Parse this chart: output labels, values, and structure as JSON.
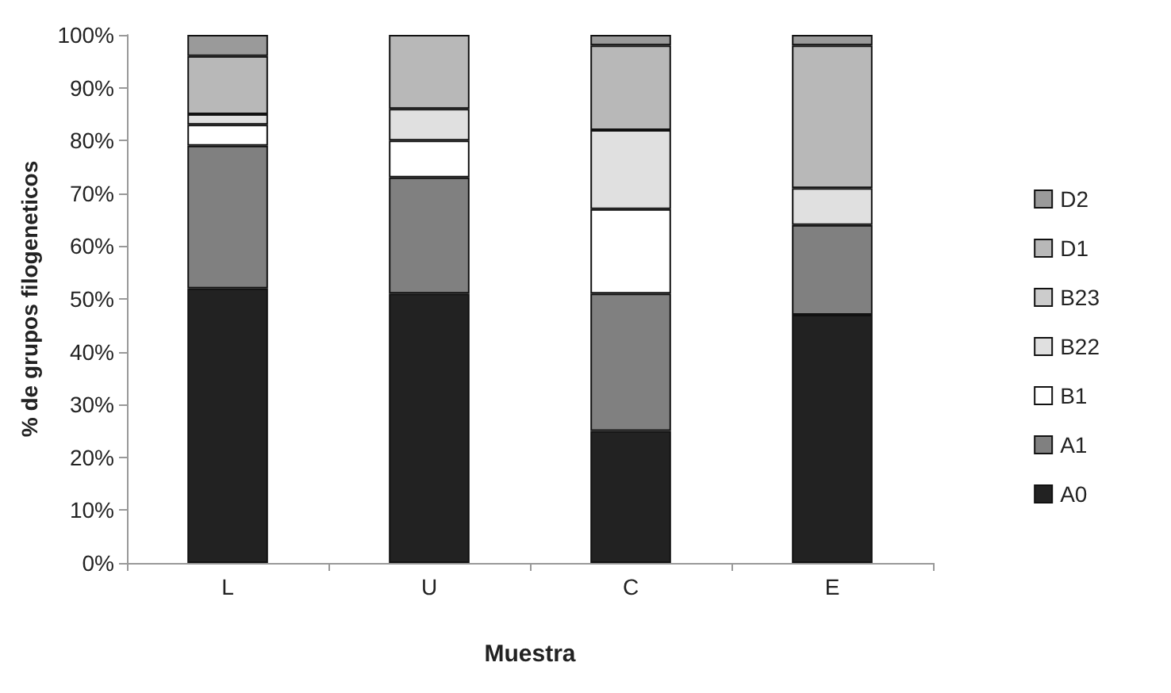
{
  "chart_data": {
    "type": "bar",
    "stacked": true,
    "xlabel": "Muestra",
    "ylabel": "% de grupos filogeneticos",
    "categories": [
      "L",
      "U",
      "C",
      "E"
    ],
    "series": [
      {
        "name": "A0",
        "color": "#222222",
        "values": [
          52,
          51,
          25,
          47
        ]
      },
      {
        "name": "A1",
        "color": "#808080",
        "values": [
          27,
          22,
          26,
          17
        ]
      },
      {
        "name": "B1",
        "color": "#ffffff",
        "values": [
          4,
          7,
          16,
          0
        ]
      },
      {
        "name": "B22",
        "color": "#e0e0e0",
        "values": [
          2,
          6,
          15,
          7
        ]
      },
      {
        "name": "B23",
        "color": "#cccccc",
        "values": [
          0,
          0,
          0,
          0
        ]
      },
      {
        "name": "D1",
        "color": "#b8b8b8",
        "values": [
          11,
          14,
          16,
          27
        ]
      },
      {
        "name": "D2",
        "color": "#9a9a9a",
        "values": [
          4,
          0,
          2,
          2
        ]
      }
    ],
    "ylim": [
      0,
      100
    ],
    "yticks": [
      {
        "value": 0,
        "label": "0%"
      },
      {
        "value": 10,
        "label": "10%"
      },
      {
        "value": 20,
        "label": "20%"
      },
      {
        "value": 30,
        "label": "30%"
      },
      {
        "value": 40,
        "label": "40%"
      },
      {
        "value": 50,
        "label": "50%"
      },
      {
        "value": 60,
        "label": "60%"
      },
      {
        "value": 70,
        "label": "70%"
      },
      {
        "value": 80,
        "label": "80%"
      },
      {
        "value": 90,
        "label": "90%"
      },
      {
        "value": 100,
        "label": "100%"
      }
    ],
    "grid": false,
    "legend": "right"
  }
}
